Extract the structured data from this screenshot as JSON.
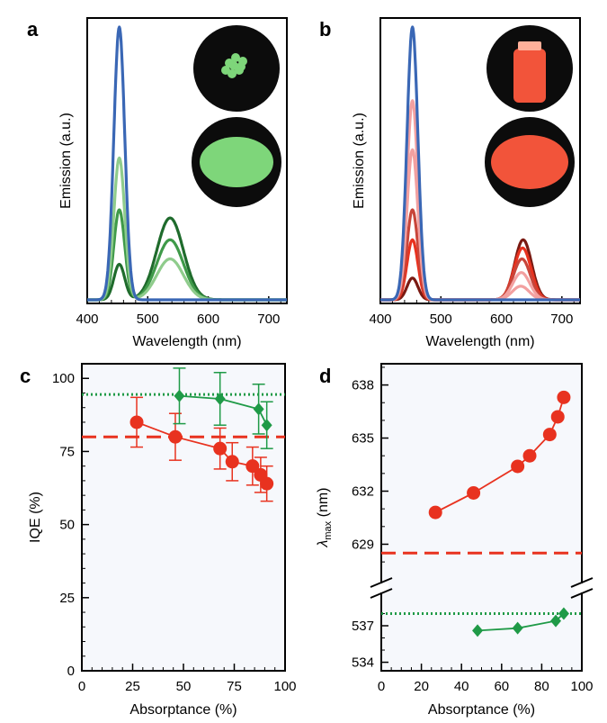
{
  "panels": [
    {
      "id": "a",
      "letter": "a",
      "xlabel": "Wavelength (nm)",
      "ylabel": "Emission (a.u.)"
    },
    {
      "id": "b",
      "letter": "b",
      "xlabel": "Wavelength (nm)",
      "ylabel": "Emission (a.u.)"
    },
    {
      "id": "c",
      "letter": "c",
      "xlabel": "Absorptance (%)",
      "ylabel": "IQE (%)"
    },
    {
      "id": "d",
      "letter": "d",
      "xlabel": "Absorptance (%)",
      "ylabel_main": "λ",
      "ylabel_sub": "max",
      "ylabel_unit": " (nm)"
    }
  ],
  "colors": {
    "blue": "#3a67b5",
    "green_dark": "#1f6b2c",
    "green_mid": "#3f9a49",
    "green_light": "#8fcc8c",
    "red": "#e8321f",
    "red_dark": "#7a1a12",
    "red_mid": "#c8453a",
    "red_light": "#f2a0a0",
    "green_marker": "#1f9a47",
    "dotted_green": "#1f9a47",
    "panel_bg": "#f6f8fc",
    "inset_green": "#7ed67a",
    "inset_red": "#f2543a"
  },
  "chart_data": [
    {
      "panel": "a",
      "type": "line",
      "xlabel": "Wavelength (nm)",
      "ylabel": "Emission (a.u.)",
      "xlim": [
        400,
        730
      ],
      "xticks": [
        400,
        500,
        600,
        700
      ],
      "yticks": [],
      "series": [
        {
          "color_key": "blue",
          "peaks": [
            {
              "center": 453,
              "width": 9,
              "height": 1.0
            }
          ]
        },
        {
          "color_key": "green_light",
          "peaks": [
            {
              "center": 453,
              "width": 9,
              "height": 0.52
            },
            {
              "center": 537,
              "width": 22,
              "height": 0.15
            }
          ]
        },
        {
          "color_key": "green_mid",
          "peaks": [
            {
              "center": 453,
              "width": 9,
              "height": 0.33
            },
            {
              "center": 537,
              "width": 22,
              "height": 0.22
            }
          ]
        },
        {
          "color_key": "green_dark",
          "peaks": [
            {
              "center": 453,
              "width": 9,
              "height": 0.13
            },
            {
              "center": 537,
              "width": 22,
              "height": 0.3
            }
          ]
        }
      ]
    },
    {
      "panel": "b",
      "type": "line",
      "xlabel": "Wavelength (nm)",
      "ylabel": "Emission (a.u.)",
      "xlim": [
        400,
        730
      ],
      "xticks": [
        400,
        500,
        600,
        700
      ],
      "yticks": [],
      "series": [
        {
          "color_key": "blue",
          "peaks": [
            {
              "center": 453,
              "width": 9,
              "height": 1.0
            }
          ]
        },
        {
          "color_key": "red_light",
          "peaks": [
            {
              "center": 453,
              "width": 9,
              "height": 0.73
            },
            {
              "center": 632,
              "width": 14,
              "height": 0.05
            }
          ]
        },
        {
          "color_key": "red_light",
          "peaks": [
            {
              "center": 453,
              "width": 9,
              "height": 0.55
            },
            {
              "center": 633,
              "width": 14,
              "height": 0.1
            }
          ]
        },
        {
          "color_key": "red_mid",
          "peaks": [
            {
              "center": 453,
              "width": 9,
              "height": 0.33
            },
            {
              "center": 634,
              "width": 14,
              "height": 0.15
            }
          ]
        },
        {
          "color_key": "red",
          "peaks": [
            {
              "center": 453,
              "width": 9,
              "height": 0.22
            },
            {
              "center": 635,
              "width": 14,
              "height": 0.19
            }
          ]
        },
        {
          "color_key": "red_dark",
          "peaks": [
            {
              "center": 453,
              "width": 9,
              "height": 0.08
            },
            {
              "center": 636,
              "width": 14,
              "height": 0.22
            }
          ]
        }
      ]
    },
    {
      "panel": "c",
      "type": "scatter",
      "xlabel": "Absorptance (%)",
      "ylabel": "IQE (%)",
      "xlim": [
        0,
        100
      ],
      "ylim": [
        0,
        105
      ],
      "xticks": [
        0,
        25,
        50,
        75,
        100
      ],
      "yticks": [
        0,
        25,
        50,
        75,
        100
      ],
      "hlines": [
        {
          "y": 94.5,
          "style": "dotted",
          "color_key": "dotted_green"
        },
        {
          "y": 80,
          "style": "dashed",
          "color_key": "red"
        }
      ],
      "series": [
        {
          "color_key": "red",
          "marker": "circle",
          "x": [
            27,
            46,
            68,
            74,
            84,
            88,
            91
          ],
          "y": [
            85,
            80,
            76,
            71.5,
            70,
            67,
            64
          ],
          "err": [
            8.5,
            8,
            7,
            6.5,
            6.5,
            6,
            6
          ]
        },
        {
          "color_key": "green_marker",
          "marker": "diamond",
          "x": [
            48,
            68,
            87,
            91
          ],
          "y": [
            94,
            93,
            89.5,
            84
          ],
          "err": [
            9.5,
            9,
            8.5,
            8
          ]
        }
      ]
    },
    {
      "panel": "d",
      "type": "scatter",
      "xlabel": "Absorptance (%)",
      "ylabel": "λmax (nm)",
      "xlim": [
        0,
        100
      ],
      "xticks": [
        0,
        20,
        40,
        60,
        80,
        100
      ],
      "broken_axis": true,
      "upper_ylim": [
        627.7,
        639.2
      ],
      "upper_yticks": [
        629,
        632,
        635,
        638
      ],
      "lower_ylim": [
        533.3,
        538.7
      ],
      "lower_yticks": [
        534,
        537
      ],
      "hlines": [
        {
          "y": 628.5,
          "style": "dashed",
          "color_key": "red",
          "segment": "upper"
        },
        {
          "y": 538.0,
          "style": "dotted",
          "color_key": "dotted_green",
          "segment": "lower"
        }
      ],
      "series": [
        {
          "color_key": "red",
          "marker": "circle",
          "segment": "upper",
          "x": [
            27,
            46,
            68,
            74,
            84,
            88,
            91
          ],
          "y": [
            630.8,
            631.9,
            633.4,
            634.0,
            635.2,
            636.2,
            637.3
          ]
        },
        {
          "color_key": "green_marker",
          "marker": "diamond",
          "segment": "lower",
          "x": [
            48,
            68,
            87,
            91
          ],
          "y": [
            536.6,
            536.8,
            537.4,
            538.0
          ]
        }
      ]
    }
  ]
}
